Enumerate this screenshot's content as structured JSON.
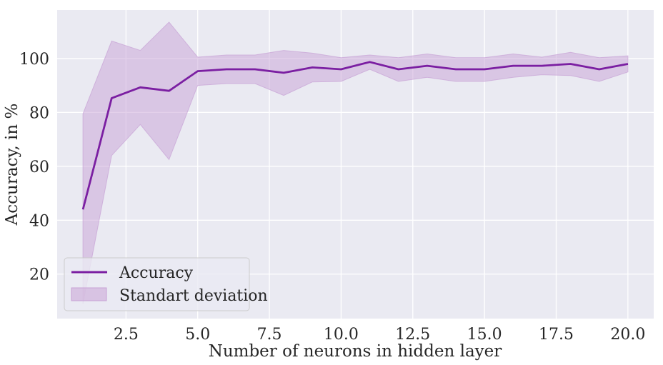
{
  "chart_data": {
    "type": "line",
    "title": "",
    "xlabel": "Number of neurons in hidden layer",
    "ylabel": "Accuracy, in %",
    "xlim": [
      0.1,
      20.9
    ],
    "ylim": [
      3.5,
      118
    ],
    "xticks": [
      2.5,
      5.0,
      7.5,
      10.0,
      12.5,
      15.0,
      17.5,
      20.0
    ],
    "xtick_labels": [
      "2.5",
      "5.0",
      "7.5",
      "10.0",
      "12.5",
      "15.0",
      "17.5",
      "20.0"
    ],
    "yticks": [
      20,
      40,
      60,
      80,
      100
    ],
    "ytick_labels": [
      "20",
      "40",
      "60",
      "80",
      "100"
    ],
    "grid": true,
    "legend": "lower-left",
    "x": [
      1,
      2,
      3,
      4,
      5,
      6,
      7,
      8,
      9,
      10,
      11,
      12,
      13,
      14,
      15,
      16,
      17,
      18,
      19,
      20
    ],
    "series": [
      {
        "name": "Accuracy",
        "kind": "line",
        "color": "#7b1fa2",
        "values": [
          44.0,
          85.3,
          89.3,
          88.0,
          95.3,
          96.0,
          96.0,
          94.7,
          96.7,
          96.0,
          98.7,
          96.0,
          97.3,
          96.0,
          96.0,
          97.3,
          97.3,
          98.0,
          96.0,
          98.0
        ]
      },
      {
        "name": "Standart deviation",
        "kind": "band",
        "color": "#c8a2d6",
        "upper": [
          79.5,
          106.5,
          103.0,
          113.5,
          100.5,
          101.3,
          101.3,
          103.0,
          102.0,
          100.3,
          101.3,
          100.3,
          101.7,
          100.3,
          100.3,
          101.7,
          100.5,
          102.3,
          100.3,
          101.0
        ],
        "lower": [
          9.0,
          64.0,
          75.5,
          62.5,
          90.0,
          90.7,
          90.7,
          86.3,
          91.3,
          91.5,
          96.0,
          91.5,
          93.0,
          91.5,
          91.5,
          93.0,
          94.0,
          93.7,
          91.5,
          95.0
        ]
      }
    ]
  }
}
